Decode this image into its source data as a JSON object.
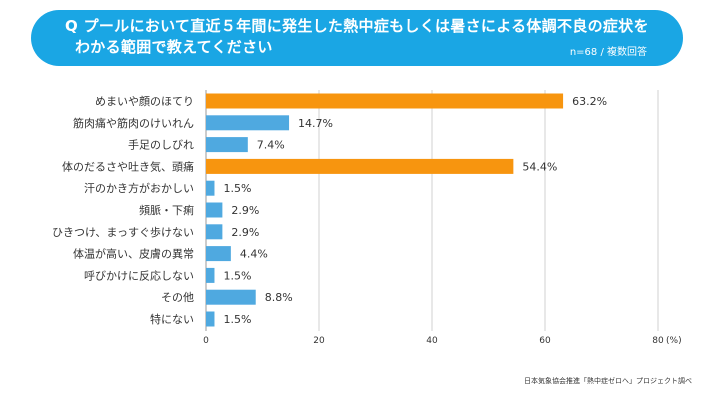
{
  "header": {
    "title_line1": "Q プールにおいて直近５年間に発生した熱中症もしくは暑さによる体調不良の症状を",
    "title_line2": "わかる範囲で教えてください",
    "sample_note": "n=68 / 複数回答"
  },
  "footer": {
    "source": "日本気象協会推進「熱中症ゼロへ」プロジェクト調べ"
  },
  "colors": {
    "banner": "#1aa6e4",
    "highlight_bar": "#f7950f",
    "normal_bar": "#4fa9e0",
    "grid": "#d0d0d0"
  },
  "chart_data": {
    "type": "bar",
    "orientation": "horizontal",
    "title": "Q プールにおいて直近５年間に発生した熱中症もしくは暑さによる体調不良の症状をわかる範囲で教えてください",
    "xlabel": "(%)",
    "ylabel": "",
    "xlim": [
      0,
      80
    ],
    "xticks": [
      0,
      20,
      40,
      60,
      80
    ],
    "xtick_labels": [
      "0",
      "20",
      "40",
      "60",
      "80"
    ],
    "unit_label": "(%)",
    "grid": true,
    "categories": [
      "めまいや顔のほてり",
      "筋肉痛や筋肉のけいれん",
      "手足のしびれ",
      "体のだるさや吐き気、頭痛",
      "汗のかき方がおかしい",
      "頻脈・下痢",
      "ひきつけ、まっすぐ歩けない",
      "体温が高い、皮膚の異常",
      "呼びかけに反応しない",
      "その他",
      "特にない"
    ],
    "values": [
      63.2,
      14.7,
      7.4,
      54.4,
      1.5,
      2.9,
      2.9,
      4.4,
      1.5,
      8.8,
      1.5
    ],
    "value_labels": [
      "63.2%",
      "14.7%",
      "7.4%",
      "54.4%",
      "1.5%",
      "2.9%",
      "2.9%",
      "4.4%",
      "1.5%",
      "8.8%",
      "1.5%"
    ],
    "highlighted": [
      true,
      false,
      false,
      true,
      false,
      false,
      false,
      false,
      false,
      false,
      false
    ]
  }
}
